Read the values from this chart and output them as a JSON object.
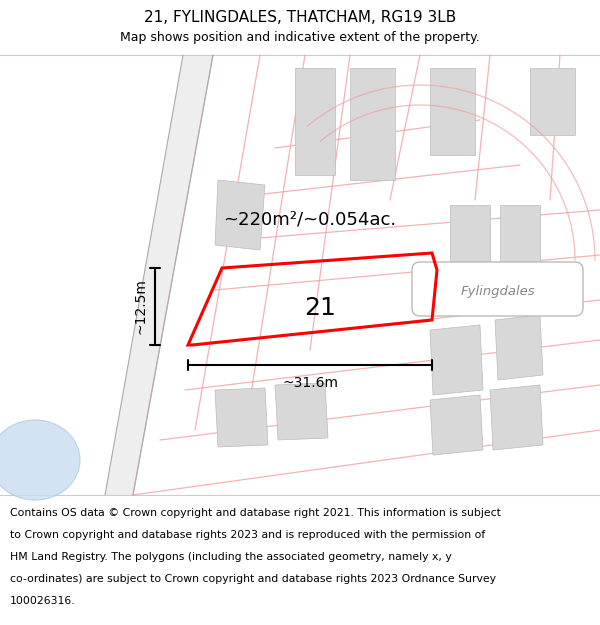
{
  "title": "21, FYLINGDALES, THATCHAM, RG19 3LB",
  "subtitle": "Map shows position and indicative extent of the property.",
  "footer_lines": [
    "Contains OS data © Crown copyright and database right 2021. This information is subject",
    "to Crown copyright and database rights 2023 and is reproduced with the permission of",
    "HM Land Registry. The polygons (including the associated geometry, namely x, y",
    "co-ordinates) are subject to Crown copyright and database rights 2023 Ordnance Survey",
    "100026316."
  ],
  "bg_color": "#ffffff",
  "area_label": "~220m²/~0.054ac.",
  "property_number": "21",
  "width_label": "~31.6m",
  "height_label": "~12.5m",
  "road_label": "Fylingdales",
  "title_fontsize": 11,
  "subtitle_fontsize": 9,
  "footer_fontsize": 7.8,
  "pink": "#f0a0a0",
  "gray_bld": "#d8d8d8",
  "gray_road": "#c8c8c8",
  "blue_water": "#c8ddf0"
}
